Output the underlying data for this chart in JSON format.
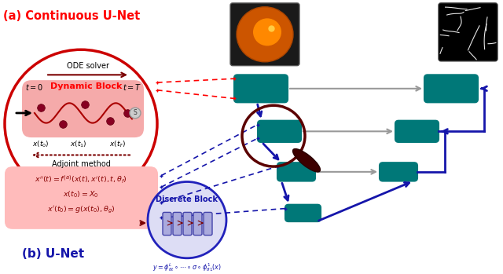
{
  "title": "(a) Continuous U-Net",
  "subtitle_b": "(b) U-Net",
  "teal": "#007878",
  "dark_red": "#7B0000",
  "light_pink": "#F5AAAA",
  "pink_formula": "#FFBBBB",
  "blue_col": "#1515AA",
  "gray_col": "#999999",
  "red_circ": "#CC0000",
  "blue_circ": "#2222BB",
  "light_blue_fill": "#AAAADD",
  "white": "#FFFFFF",
  "dynamic_block_label": "Dynamic Block",
  "ode_solver_label": "ODE solver",
  "adjoint_label": "Adjoint method",
  "discrete_block_label": "Discrete Block",
  "formula1": "$x''(t) = f^{(a)}(x(t),x'(t),t,\\theta_f)$",
  "formula2": "$x(t_0) = X_0$",
  "formula3": "$x'(t_0) = g(x(t_0),\\theta_g)$",
  "formula_y": "$y=\\phi_{\\theta t}^L \\circ \\cdots \\circ \\sigma \\circ \\phi_{\\theta 1}^1(x)$"
}
